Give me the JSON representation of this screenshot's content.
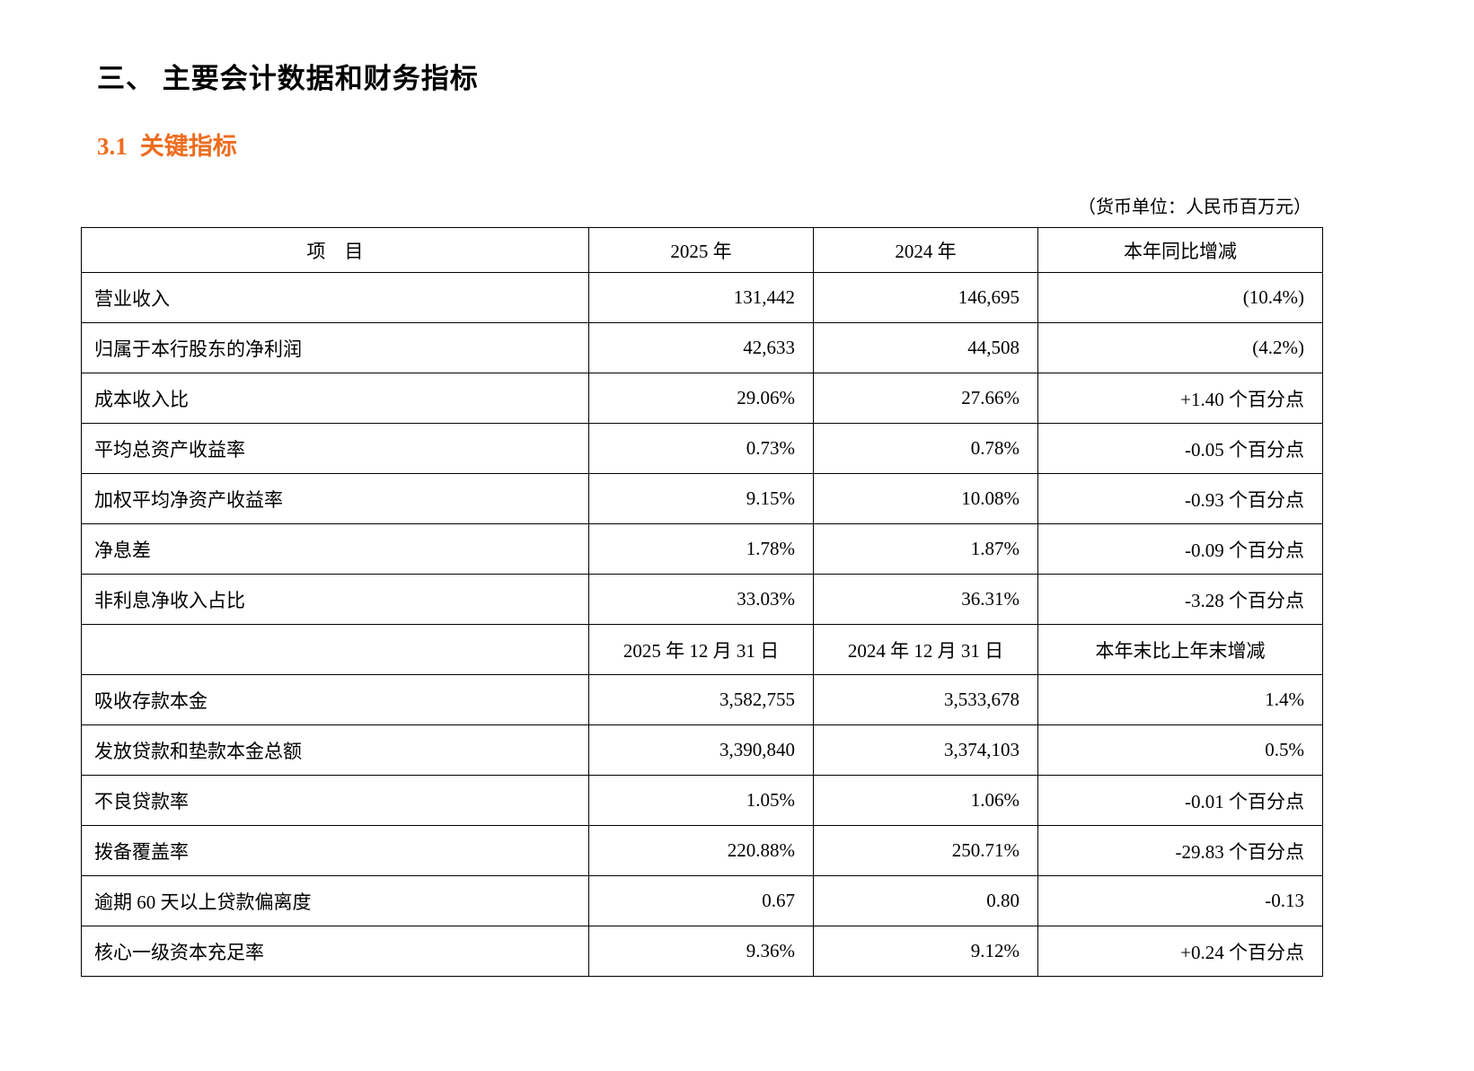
{
  "page": {
    "section_title": "三、 主要会计数据和财务指标",
    "subsection_number": "3.1",
    "subsection_title": "关键指标",
    "currency_note": "（货币单位：人民币百万元）",
    "accent_color": "#ED6D1F"
  },
  "table": {
    "header": {
      "item": "项　目",
      "col2025": "2025 年",
      "col2024": "2024 年",
      "change": "本年同比增减"
    },
    "mid_header": {
      "item": "",
      "col2025": "2025 年 12 月 31 日",
      "col2024": "2024 年 12 月 31 日",
      "change": "本年末比上年末增减"
    },
    "rows_annual": [
      {
        "label": "营业收入",
        "v2025": "131,442",
        "v2024": "146,695",
        "change": "(10.4%)"
      },
      {
        "label": "归属于本行股东的净利润",
        "v2025": "42,633",
        "v2024": "44,508",
        "change": "(4.2%)"
      },
      {
        "label": "成本收入比",
        "v2025": "29.06%",
        "v2024": "27.66%",
        "change": "+1.40 个百分点"
      },
      {
        "label": "平均总资产收益率",
        "v2025": "0.73%",
        "v2024": "0.78%",
        "change": "-0.05 个百分点"
      },
      {
        "label": "加权平均净资产收益率",
        "v2025": "9.15%",
        "v2024": "10.08%",
        "change": "-0.93 个百分点"
      },
      {
        "label": "净息差",
        "v2025": "1.78%",
        "v2024": "1.87%",
        "change": "-0.09 个百分点"
      },
      {
        "label": "非利息净收入占比",
        "v2025": "33.03%",
        "v2024": "36.31%",
        "change": "-3.28 个百分点"
      }
    ],
    "rows_balance": [
      {
        "label": "吸收存款本金",
        "v2025": "3,582,755",
        "v2024": "3,533,678",
        "change": "1.4%"
      },
      {
        "label": "发放贷款和垫款本金总额",
        "v2025": "3,390,840",
        "v2024": "3,374,103",
        "change": "0.5%"
      },
      {
        "label": "不良贷款率",
        "v2025": "1.05%",
        "v2024": "1.06%",
        "change": "-0.01 个百分点"
      },
      {
        "label": "拨备覆盖率",
        "v2025": "220.88%",
        "v2024": "250.71%",
        "change": "-29.83 个百分点"
      },
      {
        "label": "逾期 60 天以上贷款偏离度",
        "v2025": "0.67",
        "v2024": "0.80",
        "change": "-0.13"
      },
      {
        "label": "核心一级资本充足率",
        "v2025": "9.36%",
        "v2024": "9.12%",
        "change": "+0.24 个百分点"
      }
    ]
  }
}
